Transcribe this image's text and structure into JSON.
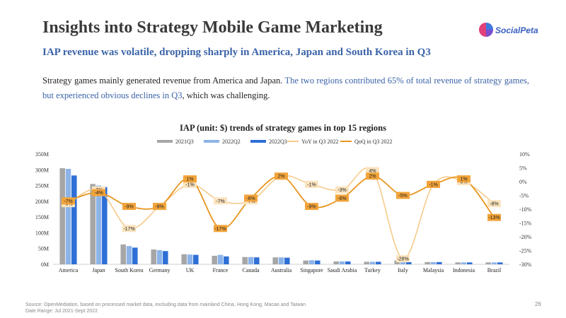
{
  "header": {
    "title": "Insights into Strategy Mobile Game Marketing",
    "subtitle": "IAP revenue was volatile, dropping sharply in America, Japan and South Korea in Q3",
    "logo_text": "SocialPeta"
  },
  "body": {
    "para_plain_1": "Strategy games mainly generated revenue from America and Japan. ",
    "para_highlight": "The two regions contributed 65% of total revenue of strategy games, but experienced obvious declines in Q3",
    "para_plain_2": ", which was challenging."
  },
  "footer": {
    "source": "Source: OpenMediation, based on processed market data, excluding data from mainland China, Hong Kong, Macao and Taiwan",
    "date_range": "Date Range: Jul 2021-Sept 2022",
    "page_number": "26"
  },
  "colors": {
    "bar_2021q3": "#a6a6a6",
    "bar_2022q2": "#8db4e8",
    "bar_2022q3": "#2e6fd6",
    "yoy_line": "#f5cb8c",
    "qoq_line": "#e8961e",
    "label_box": "#f2a43a",
    "accent_text": "#3a63a8"
  },
  "chart_data": {
    "type": "bar",
    "title": "IAP (unit: $) trends of strategy games in top 15 regions",
    "categories": [
      "America",
      "Japan",
      "South Korea",
      "Germany",
      "UK",
      "France",
      "Canada",
      "Australia",
      "Singapore",
      "Saudi Arabia",
      "Turkey",
      "Italy",
      "Malaysia",
      "Indonesia",
      "Brazil"
    ],
    "series": [
      {
        "name": "2021Q3",
        "axis": "left",
        "kind": "bar",
        "values": [
          305,
          255,
          63,
          47,
          32,
          27,
          23,
          22,
          12,
          9,
          8,
          12,
          7,
          6,
          6
        ]
      },
      {
        "name": "2022Q2",
        "axis": "left",
        "kind": "bar",
        "values": [
          303,
          250,
          58,
          45,
          31,
          30,
          23,
          22,
          13,
          9,
          8,
          8,
          7,
          6,
          6
        ]
      },
      {
        "name": "2022Q3",
        "axis": "left",
        "kind": "bar",
        "values": [
          282,
          245,
          53,
          42,
          30,
          25,
          22,
          21,
          12,
          9,
          8,
          7,
          7,
          6,
          6
        ]
      },
      {
        "name": "YoY in Q3 2022",
        "axis": "right",
        "kind": "line",
        "values": [
          -8,
          -3,
          -17,
          -9,
          -1,
          -7,
          -7,
          2,
          -1,
          -3,
          4,
          -28,
          -1,
          0,
          -8
        ],
        "labels": [
          "-8%",
          "-3%",
          "-17%",
          "-9%",
          "-1%",
          "-7%",
          "-7%",
          "2%",
          "-1%",
          "-3%",
          "4%",
          "-28%",
          "-1%",
          "0%",
          "-8%"
        ]
      },
      {
        "name": "QoQ in Q3 2022",
        "axis": "right",
        "kind": "line",
        "values": [
          -7,
          -4,
          -9,
          -9,
          1,
          -17,
          -6,
          2,
          -9,
          -6,
          2,
          -5,
          -1,
          1,
          -13
        ],
        "labels": [
          "-7%",
          "-4%",
          "-9%",
          "-9%",
          "1%",
          "-17%",
          "-6%",
          "2%",
          "-9%",
          "-6%",
          "2%",
          "-5%",
          "-1%",
          "1%",
          "-13%"
        ]
      }
    ],
    "ylim": [
      0,
      350
    ],
    "y_ticks": [
      "0M",
      "50M",
      "100M",
      "150M",
      "200M",
      "250M",
      "300M",
      "350M"
    ],
    "y2lim": [
      -30,
      10
    ],
    "y2_ticks": [
      "-30%",
      "-25%",
      "-20%",
      "-15%",
      "-10%",
      "-5%",
      "0%",
      "5%",
      "10%"
    ],
    "grid": false,
    "legend_position": "top"
  }
}
